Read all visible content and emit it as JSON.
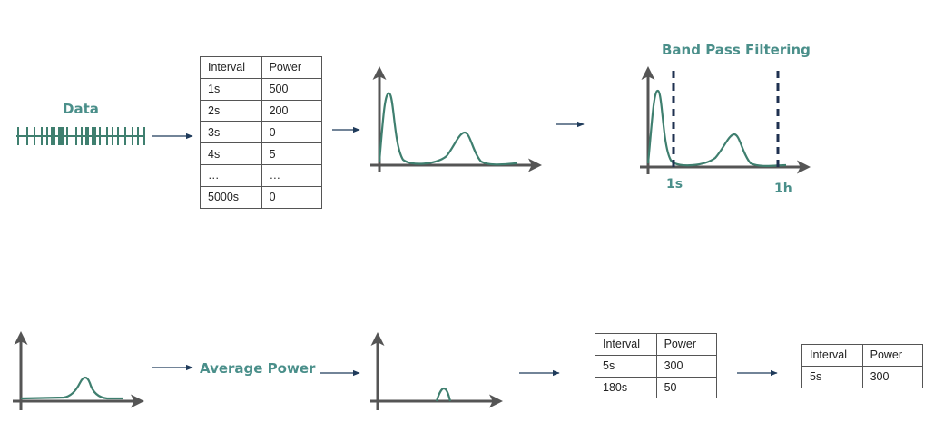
{
  "labels": {
    "data": "Data",
    "band_pass": "Band Pass Filtering",
    "tick_1s": "1s",
    "tick_1h": "1h",
    "average_power": "Average Power"
  },
  "table_main": {
    "headers": [
      "Interval",
      "Power"
    ],
    "rows": [
      [
        "1s",
        "500"
      ],
      [
        "2s",
        "200"
      ],
      [
        "3s",
        "0"
      ],
      [
        "4s",
        "5"
      ],
      [
        "…",
        "…"
      ],
      [
        "5000s",
        "0"
      ]
    ]
  },
  "table_two_rows": {
    "headers": [
      "Interval",
      "Power"
    ],
    "rows": [
      [
        "5s",
        "300"
      ],
      [
        "180s",
        "50"
      ]
    ]
  },
  "table_final": {
    "headers": [
      "Interval",
      "Power"
    ],
    "rows": [
      [
        "5s",
        "300"
      ]
    ]
  },
  "colors": {
    "accent": "#3f7f6f",
    "label": "#4a8f8a",
    "axis": "#555555",
    "arrow": "#1f3b5b",
    "dash": "#1f3150"
  }
}
